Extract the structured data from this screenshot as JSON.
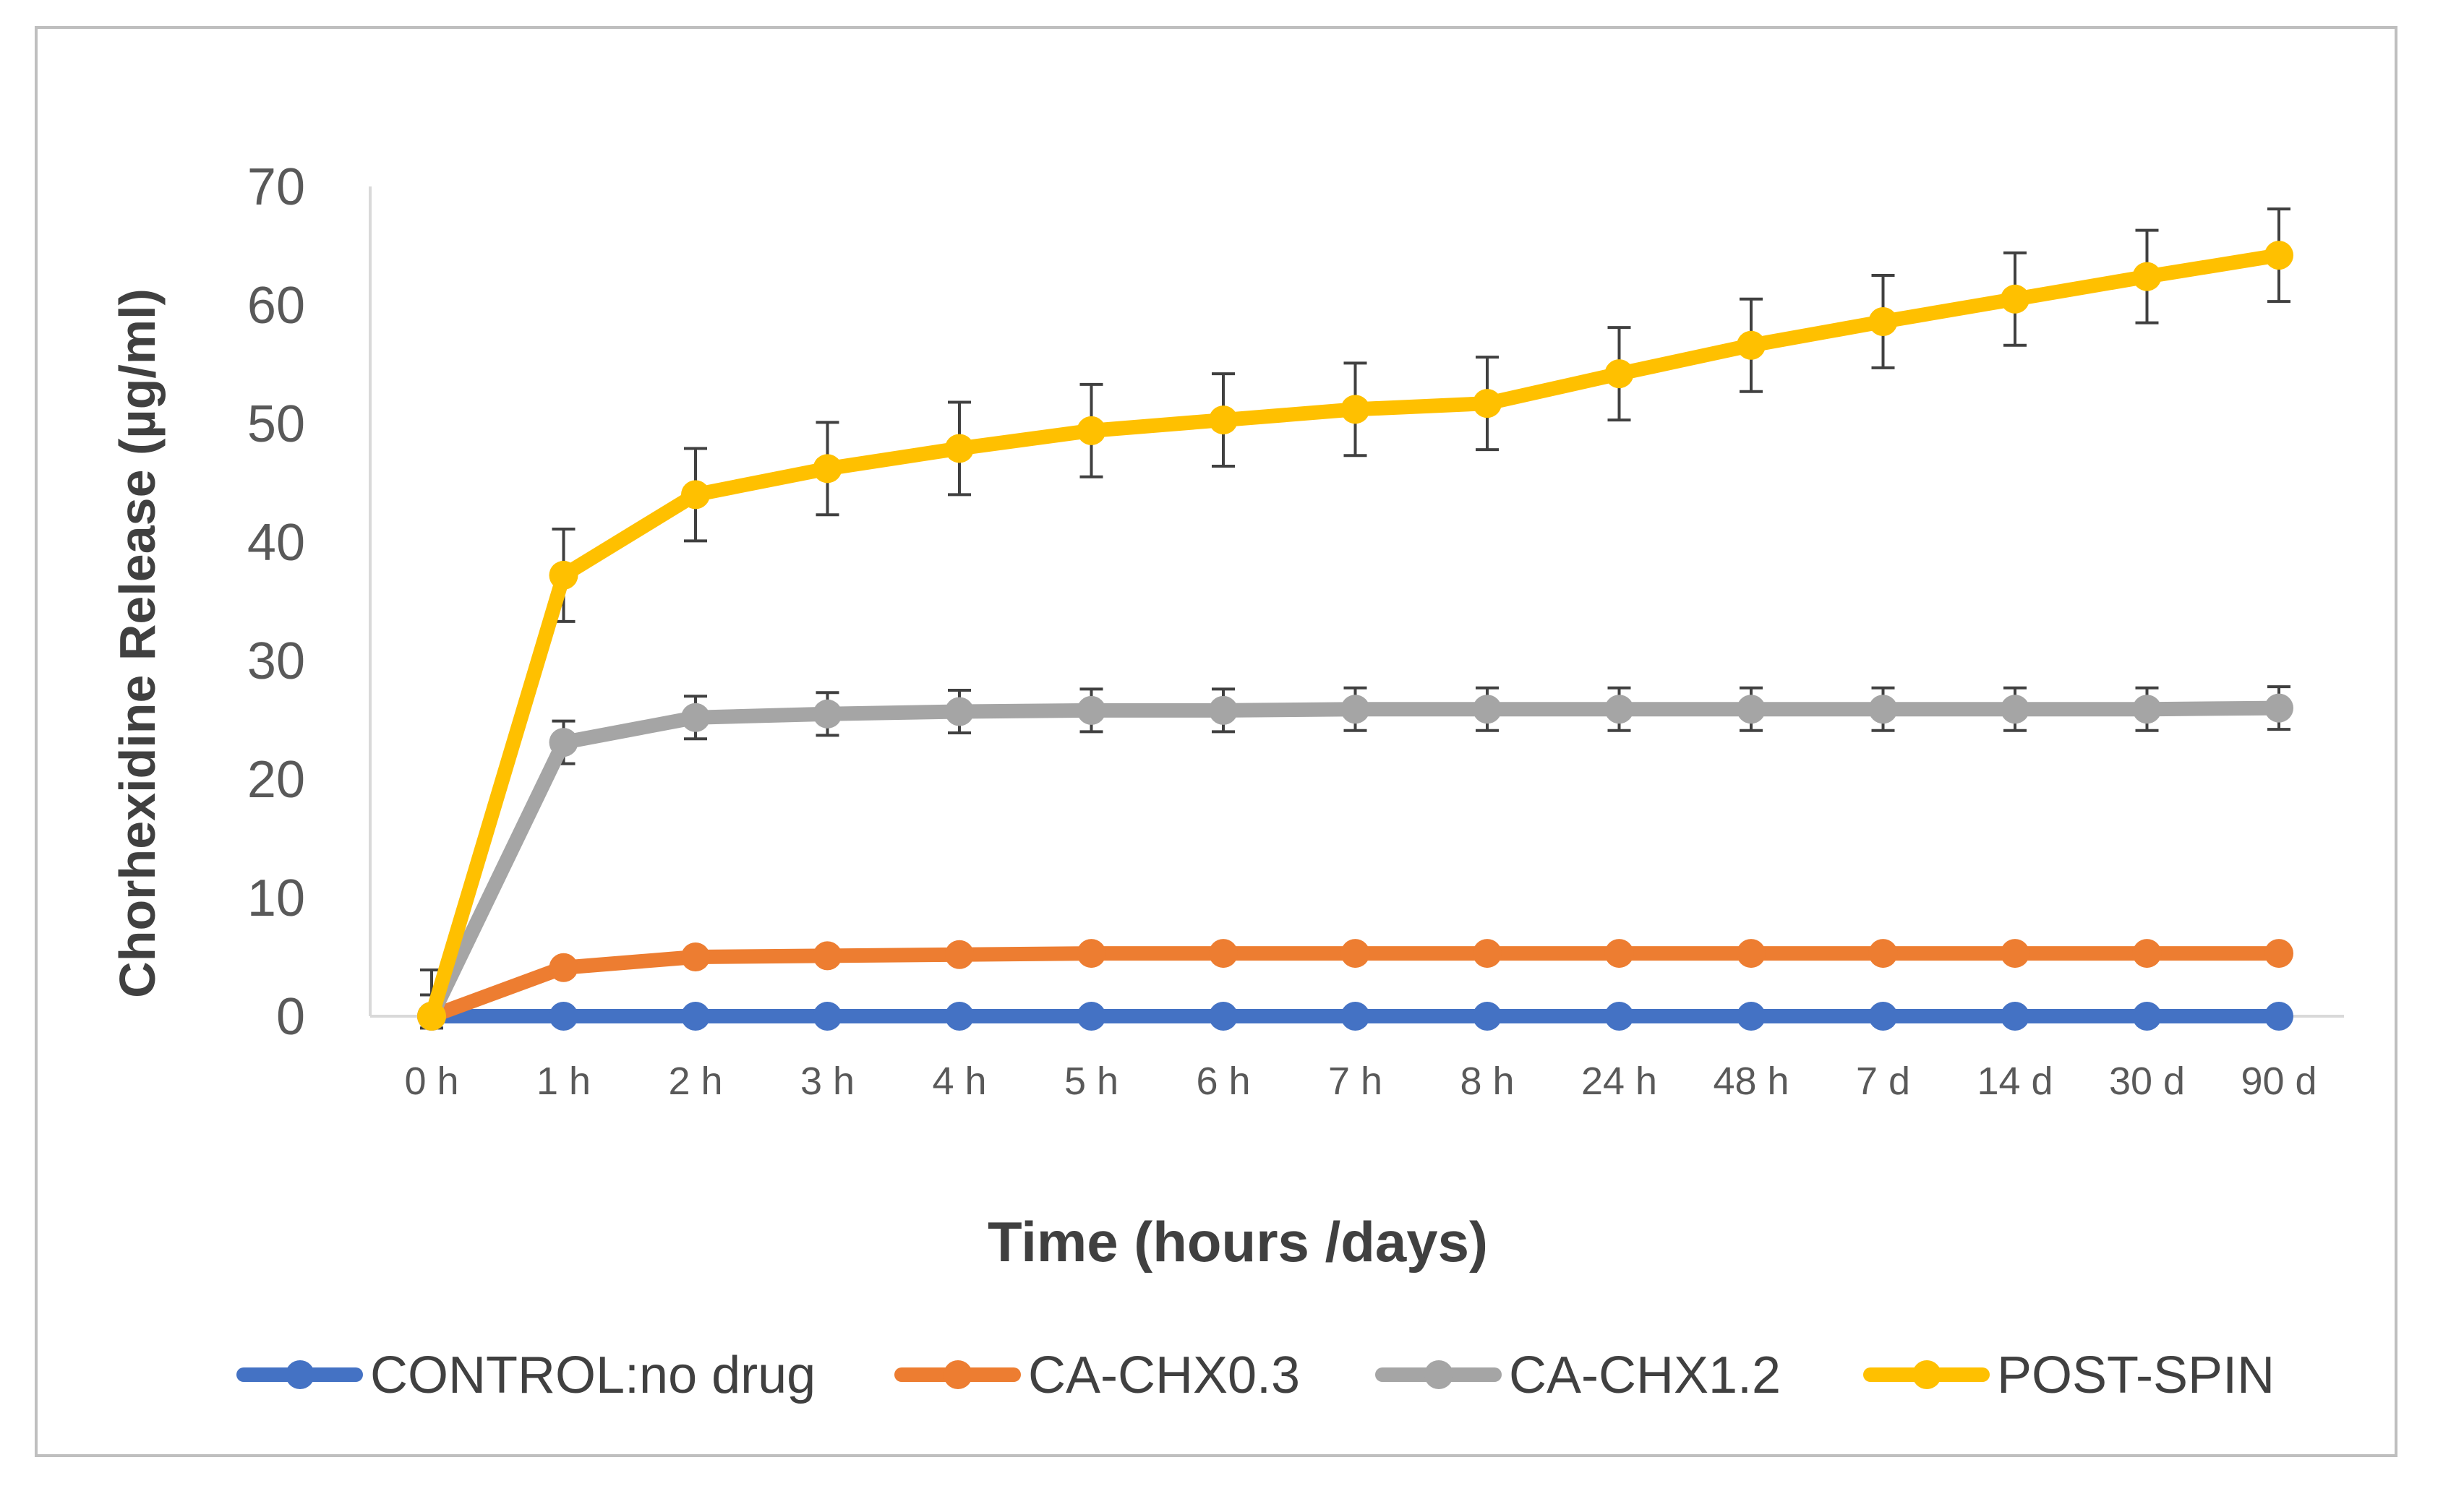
{
  "chart_data": {
    "type": "line",
    "categories": [
      "0 h",
      "1 h",
      "2 h",
      "3 h",
      "4 h",
      "5 h",
      "6 h",
      "7 h",
      "8 h",
      "24 h",
      "48 h",
      "7 d",
      "14 d",
      "30 d",
      "90 d"
    ],
    "xlabel": "Time  (hours /days)",
    "ylabel": "Chorhexidine Release (µg/ml)",
    "ylim": [
      0,
      70
    ],
    "yticks": [
      0,
      10,
      20,
      30,
      40,
      50,
      60,
      70
    ],
    "grid": false,
    "legend_position": "bottom",
    "series": [
      {
        "name": "CONTROL:no drug",
        "color": "#4472c4",
        "values": [
          0,
          0,
          0,
          0,
          0,
          0,
          0,
          0,
          0,
          0,
          0,
          0,
          0,
          0,
          0
        ],
        "errors": null
      },
      {
        "name": "CA-CHX0.3",
        "color": "#ed7d31",
        "values": [
          0,
          4.1,
          5.0,
          5.1,
          5.2,
          5.3,
          5.3,
          5.3,
          5.3,
          5.3,
          5.3,
          5.3,
          5.3,
          5.3,
          5.3
        ],
        "errors": null
      },
      {
        "name": "CA-CHX1.2",
        "color": "#a5a5a5",
        "values": [
          0,
          23.1,
          25.2,
          25.5,
          25.7,
          25.8,
          25.8,
          25.9,
          25.9,
          25.9,
          25.9,
          25.9,
          25.9,
          25.9,
          26.0
        ],
        "errors": [
          1.8,
          1.8,
          1.8,
          1.8,
          1.8,
          1.8,
          1.8,
          1.8,
          1.8,
          1.8,
          1.8,
          1.8,
          1.8,
          1.8,
          1.8
        ]
      },
      {
        "name": "POST-SPIN",
        "color": "#ffc000",
        "values": [
          0,
          37.2,
          44.0,
          46.2,
          47.9,
          49.4,
          50.3,
          51.2,
          51.7,
          54.2,
          56.6,
          58.6,
          60.5,
          62.4,
          64.2
        ],
        "errors": [
          3.9,
          3.9,
          3.9,
          3.9,
          3.9,
          3.9,
          3.9,
          3.9,
          3.9,
          3.9,
          3.9,
          3.9,
          3.9,
          3.9,
          3.9
        ]
      }
    ]
  }
}
